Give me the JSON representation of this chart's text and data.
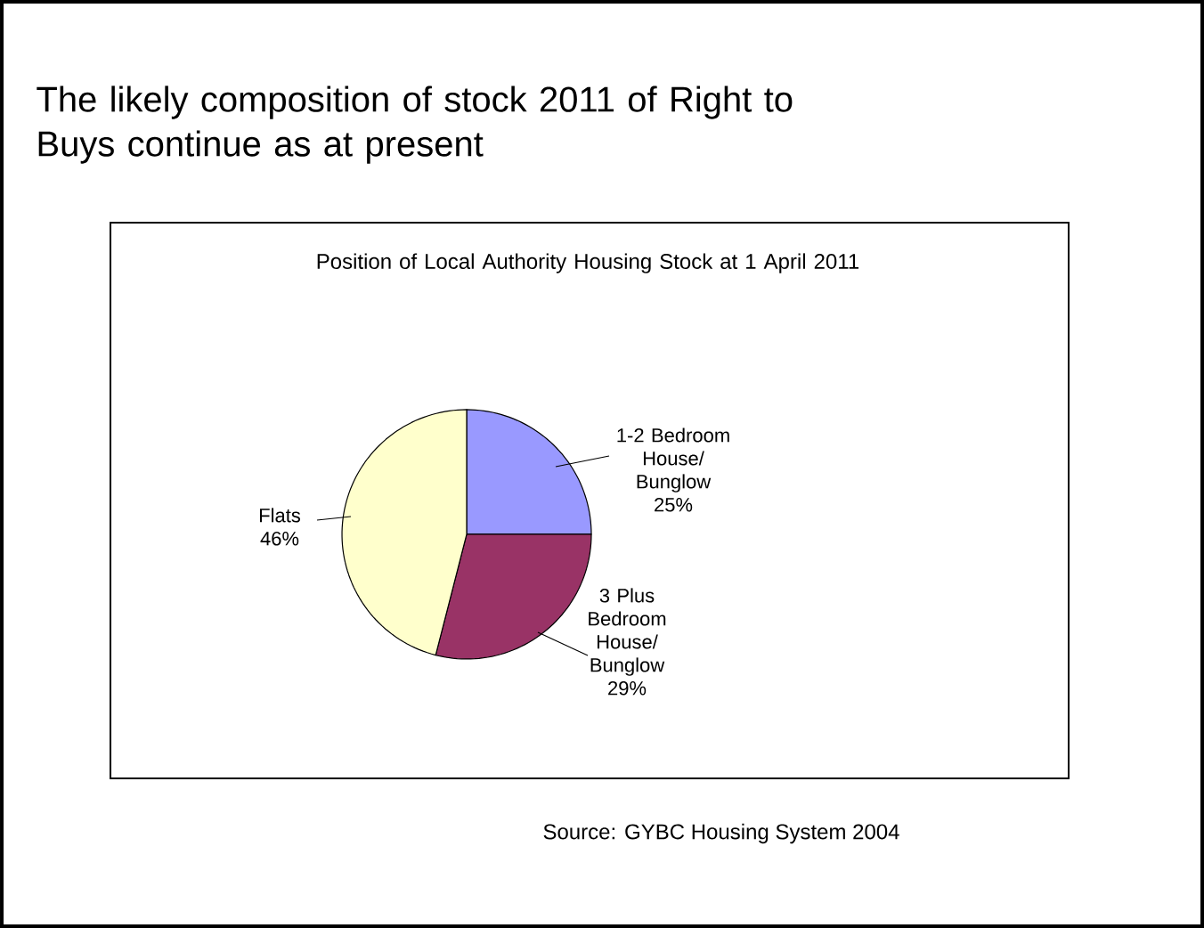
{
  "chart_data": {
    "type": "pie",
    "title": "The likely composition of stock 2011 of Right to Buys continue as at present",
    "subtitle": "Position of Local Authority Housing Stock at 1 April 2011",
    "categories": [
      "1-2 Bedroom House/ Bunglow",
      "3 Plus Bedroom House/ Bunglow",
      "Flats"
    ],
    "values": [
      25,
      29,
      46
    ],
    "value_labels": [
      "25%",
      "29%",
      "46%"
    ],
    "colors": [
      "#9999ff",
      "#993366",
      "#ffffcc"
    ],
    "annotations": [
      "Source: GYBC Housing System 2004"
    ]
  }
}
